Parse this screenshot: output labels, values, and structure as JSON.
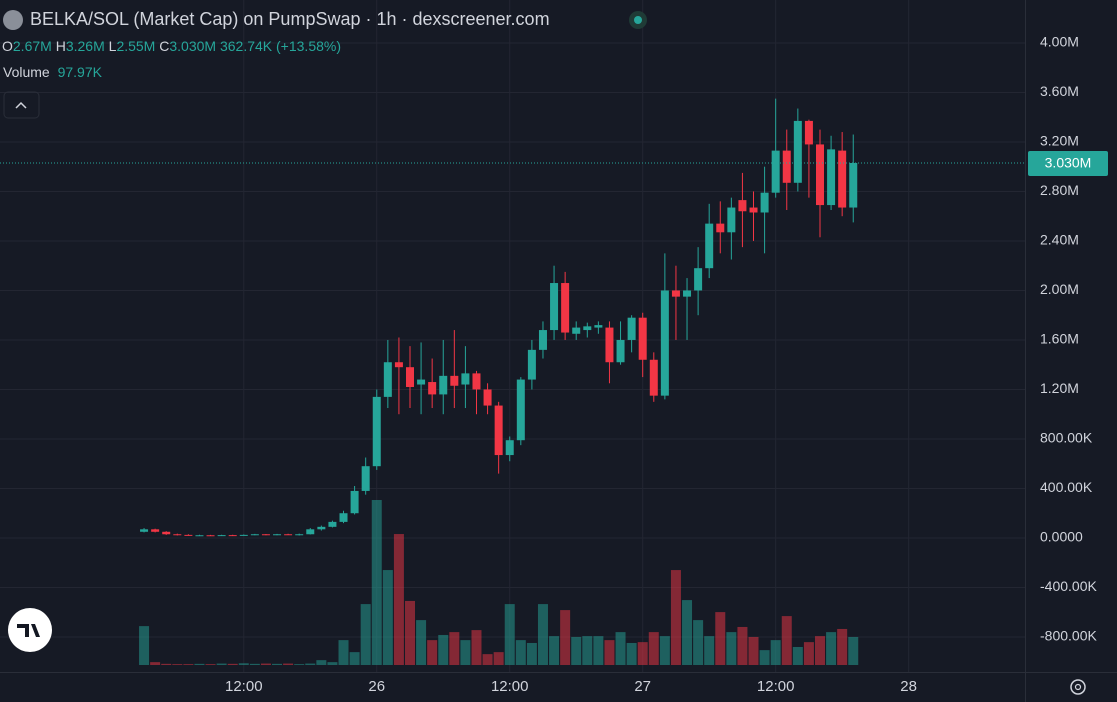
{
  "chart_data": {
    "type": "candlestick",
    "title": "BELKA/SOL (Market Cap) on PumpSwap · 1h · dexscreener.com",
    "legend": {
      "open_key": "O",
      "open": "2.67M",
      "high_key": "H",
      "high": "3.26M",
      "low_key": "L",
      "low": "2.55M",
      "close_key": "C",
      "close": "3.030M",
      "change": "362.74K (+13.58%)",
      "volume_key": "Volume",
      "volume": "97.97K"
    },
    "last_label": "3.030M",
    "up_color": "#26a69a",
    "down_color": "#f23645",
    "grid": true,
    "xlim": [
      -10,
      82.5
    ],
    "xticks": [
      {
        "value": 12,
        "label": "12:00"
      },
      {
        "value": 24,
        "label": "26"
      },
      {
        "value": 36,
        "label": "12:00"
      },
      {
        "value": 48,
        "label": "27"
      },
      {
        "value": 60,
        "label": "12:00"
      },
      {
        "value": 72,
        "label": "28"
      }
    ],
    "ylim": [
      -1083000,
      4347000
    ],
    "yticks": [
      {
        "value": 4000000,
        "label": "4.00M"
      },
      {
        "value": 3600000,
        "label": "3.60M"
      },
      {
        "value": 3200000,
        "label": "3.20M"
      },
      {
        "value": 2800000,
        "label": "2.80M"
      },
      {
        "value": 2400000,
        "label": "2.40M"
      },
      {
        "value": 2000000,
        "label": "2.00M"
      },
      {
        "value": 1600000,
        "label": "1.60M"
      },
      {
        "value": 1200000,
        "label": "1.20M"
      },
      {
        "value": 800000,
        "label": "800.00K"
      },
      {
        "value": 400000,
        "label": "400.00K"
      },
      {
        "value": 0,
        "label": "0.0000"
      },
      {
        "value": -400000,
        "label": "-400.00K"
      },
      {
        "value": -800000,
        "label": "-800.00K"
      }
    ],
    "x": [
      3,
      4,
      5,
      6,
      7,
      8,
      9,
      10,
      11,
      12,
      13,
      14,
      15,
      16,
      17,
      18,
      19,
      20,
      21,
      22,
      23,
      24,
      25,
      26,
      27,
      28,
      29,
      30,
      31,
      32,
      33,
      34,
      35,
      36,
      37,
      38,
      39,
      40,
      41,
      42,
      43,
      44,
      45,
      46,
      47,
      48,
      49,
      50,
      51,
      52,
      53,
      54,
      55,
      56,
      57,
      58,
      59,
      60,
      61,
      62,
      63,
      64,
      65,
      66,
      67
    ],
    "open": [
      50000,
      70000,
      50000,
      30000,
      25000,
      20000,
      22000,
      20000,
      23000,
      20000,
      25000,
      30000,
      25000,
      30000,
      22000,
      30000,
      70000,
      90000,
      130000,
      200000,
      380000,
      580000,
      1140000,
      1420000,
      1380000,
      1240000,
      1260000,
      1160000,
      1310000,
      1240000,
      1330000,
      1200000,
      1070000,
      670000,
      790000,
      1280000,
      1520000,
      1680000,
      2060000,
      1650000,
      1680000,
      1700000,
      1700000,
      1420000,
      1600000,
      1780000,
      1440000,
      1150000,
      2000000,
      1950000,
      2000000,
      2180000,
      2540000,
      2470000,
      2730000,
      2670000,
      2630000,
      2790000,
      3130000,
      2870000,
      3370000,
      3180000,
      2690000,
      3130000,
      2670000
    ],
    "high": [
      80000,
      75000,
      55000,
      35000,
      30000,
      26000,
      25000,
      26000,
      26000,
      28000,
      33000,
      32000,
      33000,
      34000,
      35000,
      80000,
      100000,
      140000,
      220000,
      420000,
      650000,
      1200000,
      1600000,
      1620000,
      1550000,
      1580000,
      1450000,
      1600000,
      1680000,
      1550000,
      1350000,
      1250000,
      1100000,
      820000,
      1300000,
      1600000,
      1750000,
      2200000,
      2150000,
      1750000,
      1740000,
      1750000,
      1750000,
      1750000,
      1800000,
      1820000,
      1500000,
      2300000,
      2200000,
      2100000,
      2350000,
      2700000,
      2720000,
      2750000,
      2950000,
      2800000,
      3000000,
      3550000,
      3300000,
      3470000,
      3380000,
      3300000,
      3250000,
      3280000,
      3260000
    ],
    "low": [
      45000,
      45000,
      25000,
      20000,
      18000,
      18000,
      17000,
      18000,
      18000,
      18000,
      22000,
      22000,
      22000,
      24000,
      20000,
      28000,
      60000,
      85000,
      120000,
      190000,
      350000,
      550000,
      1050000,
      1000000,
      1050000,
      1000000,
      1050000,
      1000000,
      1050000,
      1050000,
      1000000,
      1000000,
      520000,
      620000,
      750000,
      1200000,
      1450000,
      1600000,
      1600000,
      1600000,
      1620000,
      1650000,
      1250000,
      1400000,
      1500000,
      1300000,
      1100000,
      1120000,
      1600000,
      1600000,
      1800000,
      2100000,
      2300000,
      2250000,
      2350000,
      2400000,
      2300000,
      2750000,
      2650000,
      2800000,
      2750000,
      2430000,
      2650000,
      2600000,
      2550000
    ],
    "close": [
      70000,
      50000,
      30000,
      25000,
      20000,
      22000,
      20000,
      23000,
      20000,
      25000,
      30000,
      25000,
      30000,
      27000,
      30000,
      70000,
      90000,
      130000,
      200000,
      380000,
      580000,
      1140000,
      1420000,
      1380000,
      1220000,
      1280000,
      1160000,
      1310000,
      1230000,
      1330000,
      1200000,
      1070000,
      670000,
      790000,
      1280000,
      1520000,
      1680000,
      2060000,
      1660000,
      1700000,
      1710000,
      1720000,
      1420000,
      1600000,
      1780000,
      1440000,
      1150000,
      2000000,
      1950000,
      2000000,
      2180000,
      2540000,
      2470000,
      2670000,
      2640000,
      2630000,
      2790000,
      3130000,
      2870000,
      3370000,
      3180000,
      2690000,
      3140000,
      2670000,
      3030000
    ],
    "volume": [
      136000,
      10000,
      4000,
      3000,
      3000,
      4000,
      3000,
      5000,
      4000,
      6000,
      4000,
      5000,
      4000,
      5000,
      3000,
      5000,
      17000,
      10000,
      87000,
      45000,
      213000,
      577000,
      332000,
      458000,
      224000,
      157000,
      87000,
      105000,
      115000,
      87000,
      122000,
      38000,
      45000,
      213000,
      87000,
      77000,
      213000,
      101000,
      192000,
      98000,
      101000,
      101000,
      87000,
      115000,
      77000,
      80000,
      115000,
      101000,
      332000,
      227000,
      157000,
      101000,
      185000,
      115000,
      133000,
      98000,
      52000,
      87000,
      171000,
      63000,
      80000,
      101000,
      115000,
      126000,
      97970
    ]
  }
}
